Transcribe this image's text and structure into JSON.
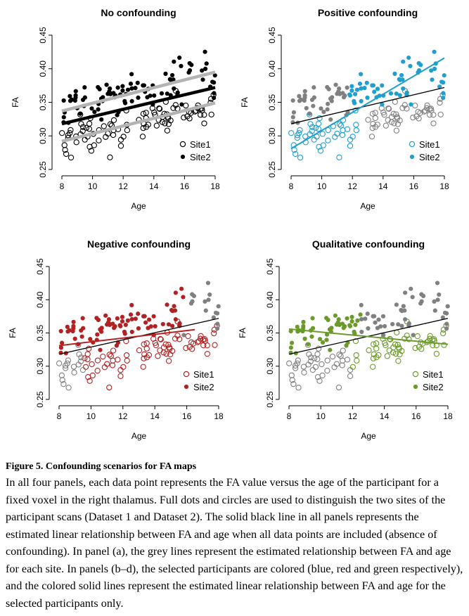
{
  "figure_caption": {
    "title": "Figure 5. Confounding scenarios for FA maps",
    "body": "In all four panels, each data point represents the FA value versus the age of the participant for a fixed voxel in the right thalamus. Full dots and circles are used to distinguish the two sites of the participant scans (Dataset 1 and Dataset 2). The solid black line in all panels represents the estimated linear relationship between FA and age when all data points are included (absence of confounding). In panel (a), the grey lines represent the estimated relationship between FA and age for each site. In panels (b–d), the selected participants are colored (blue, red and green respectively), and the colored solid lines represent the estimated linear relationship between FA and age for the selected participants only."
  },
  "chart_data": [
    {
      "type": "scatter",
      "title": "No confounding",
      "xlabel": "Age",
      "ylabel": "FA",
      "xlim": [
        8,
        18
      ],
      "ylim": [
        0.25,
        0.45
      ],
      "xticks": [
        "8",
        "10",
        "12",
        "14",
        "16",
        "18"
      ],
      "yticks": [
        "0.25",
        "0.30",
        "0.35",
        "0.40",
        "0.45"
      ],
      "legend": {
        "position": "bottom-right",
        "entries": [
          "Site1",
          "Site2"
        ]
      },
      "color": "#000000",
      "overall_line": {
        "x": [
          8,
          18
        ],
        "y": [
          0.318,
          0.372
        ]
      },
      "site_lines": [
        {
          "x": [
            8,
            18
          ],
          "y": [
            0.292,
            0.349
          ]
        },
        {
          "x": [
            8,
            18
          ],
          "y": [
            0.337,
            0.395
          ]
        }
      ]
    },
    {
      "type": "scatter",
      "title": "Positive confounding",
      "xlabel": "Age",
      "ylabel": "FA",
      "xlim": [
        8,
        18
      ],
      "ylim": [
        0.25,
        0.45
      ],
      "xticks": [
        "8",
        "10",
        "12",
        "14",
        "16",
        "18"
      ],
      "yticks": [
        "0.25",
        "0.30",
        "0.35",
        "0.40",
        "0.45"
      ],
      "legend": {
        "position": "bottom-right",
        "entries": [
          "Site1",
          "Site2"
        ]
      },
      "color": "#1f9fd0",
      "overall_line": {
        "x": [
          8,
          18
        ],
        "y": [
          0.318,
          0.372
        ]
      },
      "selected_line": {
        "x": [
          8,
          18
        ],
        "y": [
          0.281,
          0.416
        ]
      }
    },
    {
      "type": "scatter",
      "title": "Negative confounding",
      "xlabel": "Age",
      "ylabel": "FA",
      "xlim": [
        8,
        18
      ],
      "ylim": [
        0.25,
        0.45
      ],
      "xticks": [
        "8",
        "10",
        "12",
        "14",
        "16",
        "18"
      ],
      "yticks": [
        "0.25",
        "0.30",
        "0.35",
        "0.40",
        "0.45"
      ],
      "legend": {
        "position": "bottom-right",
        "entries": [
          "Site1",
          "Site2"
        ]
      },
      "color": "#b22222",
      "overall_line": {
        "x": [
          8,
          18
        ],
        "y": [
          0.318,
          0.372
        ]
      },
      "selected_line": {
        "x": [
          8,
          16.5
        ],
        "y": [
          0.331,
          0.355
        ]
      }
    },
    {
      "type": "scatter",
      "title": "Qualitative confounding",
      "xlabel": "Age",
      "ylabel": "FA",
      "xlim": [
        8,
        18
      ],
      "ylim": [
        0.25,
        0.45
      ],
      "xticks": [
        "8",
        "10",
        "12",
        "14",
        "16",
        "18"
      ],
      "yticks": [
        "0.25",
        "0.30",
        "0.35",
        "0.40",
        "0.45"
      ],
      "legend": {
        "position": "bottom-right",
        "entries": [
          "Site1",
          "Site2"
        ]
      },
      "color": "#6b9a2a",
      "overall_line": {
        "x": [
          8,
          18
        ],
        "y": [
          0.318,
          0.372
        ]
      },
      "selected_line": {
        "x": [
          8,
          18
        ],
        "y": [
          0.356,
          0.333
        ]
      }
    }
  ]
}
